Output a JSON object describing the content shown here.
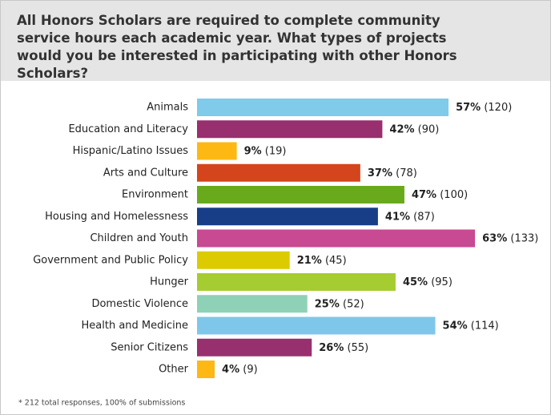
{
  "chart_data": {
    "type": "bar",
    "orientation": "horizontal",
    "title": "All Honors Scholars are required to complete community service hours each academic year. What types of projects would you be interested in participating with other Honors Scholars?",
    "categories": [
      "Animals",
      "Education and Literacy",
      "Hispanic/Latino Issues",
      "Arts and Culture",
      "Environment",
      "Housing and Homelessness",
      "Children and Youth",
      "Government and Public Policy",
      "Hunger",
      "Domestic Violence",
      "Health and Medicine",
      "Senior Citizens",
      "Other"
    ],
    "values": [
      57,
      42,
      9,
      37,
      47,
      41,
      63,
      21,
      45,
      25,
      54,
      26,
      4
    ],
    "value_labels": [
      "57%",
      "42%",
      "9%",
      "37%",
      "47%",
      "41%",
      "63%",
      "21%",
      "45%",
      "25%",
      "54%",
      "26%",
      "4%"
    ],
    "count_labels": [
      "(120)",
      "(90)",
      "(19)",
      "(78)",
      "(100)",
      "(87)",
      "(133)",
      "(45)",
      "(95)",
      "(52)",
      "(114)",
      "(55)",
      "(9)"
    ],
    "colors": [
      "#7fcbe9",
      "#982f6f",
      "#fdb813",
      "#d4451d",
      "#69aa1d",
      "#173e87",
      "#c74a92",
      "#dccb00",
      "#a5cc30",
      "#8fd1b7",
      "#7fc7ea",
      "#982f6f",
      "#fdb813"
    ],
    "footnote": "* 212 total responses, 100% of submissions"
  }
}
